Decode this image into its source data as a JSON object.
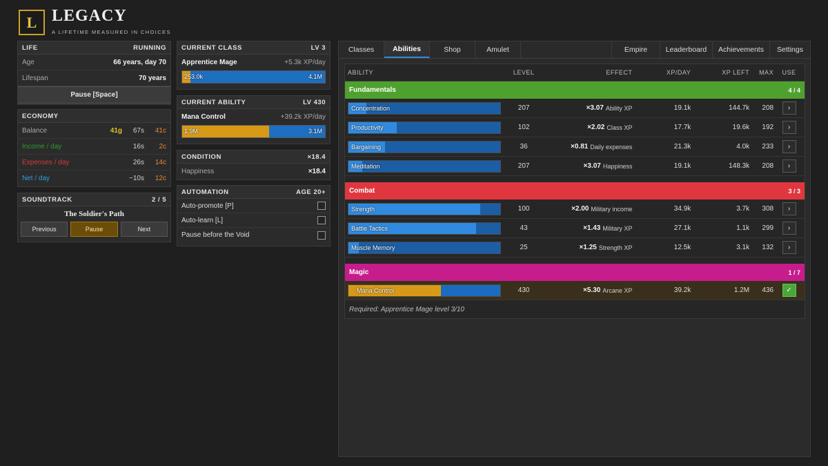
{
  "app": {
    "logo_letter": "L",
    "title": "LEGACY",
    "subtitle": "A LIFETIME MEASURED IN CHOICES"
  },
  "life": {
    "title": "LIFE",
    "status": "RUNNING",
    "age_label": "Age",
    "age_value": "66 years, day 70",
    "lifespan_label": "Lifespan",
    "lifespan_value": "70 years",
    "pause_label": "Pause [Space]"
  },
  "economy": {
    "title": "ECONOMY",
    "rows": [
      {
        "label": "Balance",
        "a": "41g",
        "b": "67s",
        "c": "41c",
        "label_color": "#a8a8a8",
        "a_color": "#e3c22e",
        "b_color": "#d0d0d0",
        "c_color": "#e08a3c"
      },
      {
        "label": "Income / day",
        "a": "",
        "b": "16s",
        "c": "2c",
        "label_color": "#2e9a2e",
        "a_color": "#d0d0d0",
        "b_color": "#d0d0d0",
        "c_color": "#e08a3c"
      },
      {
        "label": "Expenses / day",
        "a": "",
        "b": "26s",
        "c": "14c",
        "label_color": "#d23b3b",
        "a_color": "#d0d0d0",
        "b_color": "#d0d0d0",
        "c_color": "#e08a3c"
      },
      {
        "label": "Net / day",
        "a": "",
        "b": "−10s",
        "c": "12c",
        "label_color": "#2f9de0",
        "a_color": "#d0d0d0",
        "b_color": "#d0d0d0",
        "c_color": "#e08a3c"
      }
    ]
  },
  "soundtrack": {
    "title": "SOUNDTRACK",
    "count": "2 / 5",
    "track": "The Soldier's Path",
    "prev": "Previous",
    "pause": "Pause",
    "next": "Next"
  },
  "current_class": {
    "title": "CURRENT CLASS",
    "level": "LV 3",
    "name": "Apprentice Mage",
    "rate": "+5.3k XP/day",
    "bar_left": "253.0k",
    "bar_right": "4.1M",
    "progress": 0.06
  },
  "current_ability": {
    "title": "CURRENT ABILITY",
    "level": "LV 430",
    "name": "Mana Control",
    "rate": "+39.2k XP/day",
    "bar_left": "1.9M",
    "bar_right": "3.1M",
    "progress": 0.61
  },
  "condition": {
    "title": "CONDITION",
    "mult": "×18.4",
    "happiness_label": "Happiness",
    "happiness_value": "×18.4"
  },
  "automation": {
    "title": "AUTOMATION",
    "age": "AGE 20+",
    "items": [
      "Auto-promote [P]",
      "Auto-learn [L]",
      "Pause before the Void"
    ]
  },
  "tabs": {
    "left": [
      "Classes",
      "Abilities",
      "Shop",
      "Amulet"
    ],
    "right": [
      "Empire",
      "Leaderboard",
      "Achievements",
      "Settings"
    ],
    "active": "Abilities"
  },
  "table": {
    "headers": {
      "ability": "ABILITY",
      "level": "LEVEL",
      "effect": "EFFECT",
      "xpday": "XP/DAY",
      "xpleft": "XP LEFT",
      "max": "MAX",
      "use": "USE"
    },
    "groups": [
      {
        "name": "Fundamentals",
        "count": "4 / 4",
        "color": "#4fa12f",
        "rows": [
          {
            "name": "Concentration",
            "level": "207",
            "mult": "×3.07",
            "effect": "Ability XP",
            "xpday": "19.1k",
            "xpleft": "144.7k",
            "max": "208",
            "progress": 0.12
          },
          {
            "name": "Productivity",
            "level": "102",
            "mult": "×2.02",
            "effect": "Class XP",
            "xpday": "17.7k",
            "xpleft": "19.6k",
            "max": "192",
            "progress": 0.32
          },
          {
            "name": "Bargaining",
            "level": "36",
            "mult": "×0.81",
            "effect": "Daily expenses",
            "xpday": "21.3k",
            "xpleft": "4.0k",
            "max": "233",
            "progress": 0.24
          },
          {
            "name": "Meditation",
            "level": "207",
            "mult": "×3.07",
            "effect": "Happiness",
            "xpday": "19.1k",
            "xpleft": "148.3k",
            "max": "208",
            "progress": 0.09
          }
        ]
      },
      {
        "name": "Combat",
        "count": "3 / 3",
        "color": "#e0373f",
        "rows": [
          {
            "name": "Strength",
            "level": "100",
            "mult": "×2.00",
            "effect": "Military income",
            "xpday": "34.9k",
            "xpleft": "3.7k",
            "max": "308",
            "progress": 0.87
          },
          {
            "name": "Battle Tactics",
            "level": "43",
            "mult": "×1.43",
            "effect": "Military XP",
            "xpday": "27.1k",
            "xpleft": "1.1k",
            "max": "299",
            "progress": 0.84
          },
          {
            "name": "Muscle Memory",
            "level": "25",
            "mult": "×1.25",
            "effect": "Strength XP",
            "xpday": "12.5k",
            "xpleft": "3.1k",
            "max": "132",
            "progress": 0.07
          }
        ]
      },
      {
        "name": "Magic",
        "count": "1 / 7",
        "color": "#c61c8c",
        "rows": [
          {
            "name": "Mana Control",
            "level": "430",
            "mult": "×5.30",
            "effect": "Arcane XP",
            "xpday": "39.2k",
            "xpleft": "1.2M",
            "max": "436",
            "progress": 0.61,
            "active": true
          }
        ],
        "requirement": "Required: Apprentice Mage level 3/10"
      }
    ],
    "use_symbol": "›",
    "use_active_symbol": "✓"
  }
}
